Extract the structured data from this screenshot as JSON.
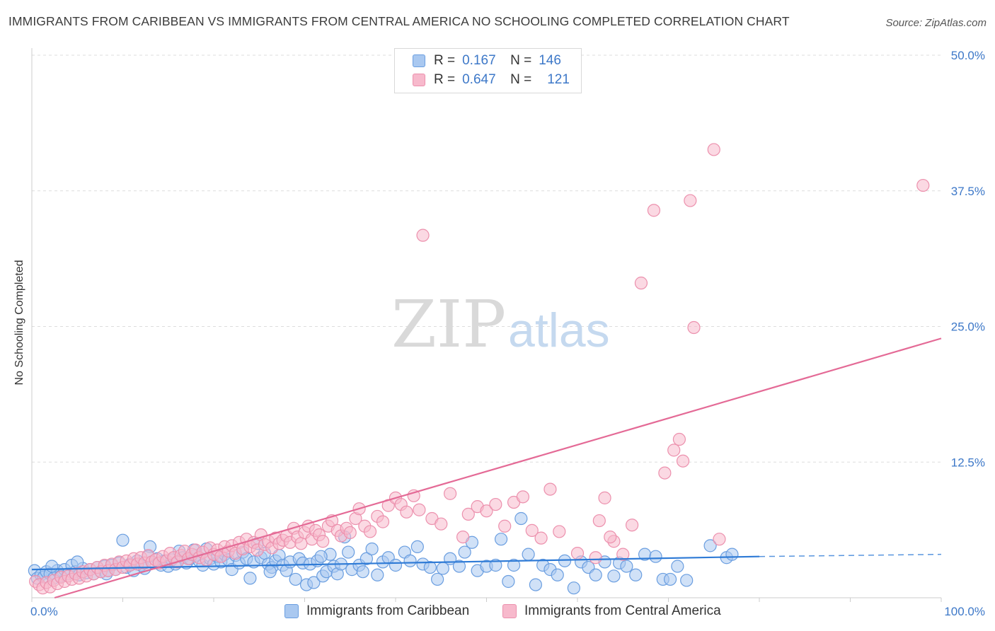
{
  "title": "IMMIGRANTS FROM CARIBBEAN VS IMMIGRANTS FROM CENTRAL AMERICA NO SCHOOLING COMPLETED CORRELATION CHART",
  "source": "Source: ZipAtlas.com",
  "watermark": {
    "zip": "ZIP",
    "atlas": "atlas"
  },
  "legend": {
    "rows": [
      {
        "r_label": "R =",
        "r_value": "0.167",
        "n_label": "N =",
        "n_value": "146"
      },
      {
        "r_label": "R =",
        "r_value": "0.647",
        "n_label": "N =",
        "n_value": "121"
      }
    ]
  },
  "colors": {
    "blue_fill": "#a9c8f0",
    "blue_stroke": "#6a9ee0",
    "blue_line": "#2f7bd6",
    "pink_fill": "#f7b9cc",
    "pink_stroke": "#ec90ad",
    "pink_line": "#e46a96",
    "tick_label": "#3d78c8",
    "grid": "#dddddd"
  },
  "chart_data": {
    "type": "scatter",
    "title": "IMMIGRANTS FROM CARIBBEAN VS IMMIGRANTS FROM CENTRAL AMERICA NO SCHOOLING COMPLETED CORRELATION CHART",
    "xlabel": "",
    "ylabel": "No Schooling Completed",
    "xlim": [
      0,
      100
    ],
    "ylim": [
      0,
      50
    ],
    "x_tick_labels": [
      "0.0%",
      "100.0%"
    ],
    "y_ticks": [
      12.5,
      25.0,
      37.5,
      50.0
    ],
    "y_tick_labels": [
      "12.5%",
      "25.0%",
      "37.5%",
      "50.0%"
    ],
    "grid": true,
    "legend_position": "top-center",
    "series": [
      {
        "name": "Immigrants from Caribbean",
        "color": "#a9c8f0",
        "R": 0.167,
        "N": 146,
        "trend": {
          "x": [
            0,
            80
          ],
          "y": [
            2.6,
            3.8
          ],
          "dashed_to": [
            100,
            4.0
          ]
        },
        "points": [
          [
            0.3,
            2.5
          ],
          [
            0.6,
            1.8
          ],
          [
            1,
            2.1
          ],
          [
            1.3,
            1.9
          ],
          [
            1.6,
            2.4
          ],
          [
            2,
            2.2
          ],
          [
            2.4,
            1.8
          ],
          [
            2.8,
            2.5
          ],
          [
            3.2,
            2
          ],
          [
            3.6,
            2.6
          ],
          [
            4,
            2.2
          ],
          [
            4.4,
            3
          ],
          [
            4.8,
            2.4
          ],
          [
            5.2,
            2.1
          ],
          [
            5.6,
            2.7
          ],
          [
            6,
            2.3
          ],
          [
            6.4,
            2.6
          ],
          [
            6.8,
            2.2
          ],
          [
            7.2,
            2.8
          ],
          [
            7.6,
            2.4
          ],
          [
            8,
            2.9
          ],
          [
            8.4,
            2.5
          ],
          [
            8.8,
            3
          ],
          [
            9.2,
            2.6
          ],
          [
            9.6,
            3.2
          ],
          [
            10,
            5.3
          ],
          [
            10.4,
            2.8
          ],
          [
            10.8,
            3.1
          ],
          [
            11.2,
            2.5
          ],
          [
            11.6,
            3.4
          ],
          [
            12,
            3
          ],
          [
            12.4,
            2.7
          ],
          [
            13,
            4.7
          ],
          [
            13.4,
            3.2
          ],
          [
            13.8,
            3.6
          ],
          [
            14.2,
            3
          ],
          [
            14.6,
            3.4
          ],
          [
            15,
            2.9
          ],
          [
            15.4,
            3.5
          ],
          [
            15.8,
            3.1
          ],
          [
            16.2,
            4.3
          ],
          [
            16.6,
            3.7
          ],
          [
            17,
            3.2
          ],
          [
            17.4,
            3.6
          ],
          [
            18,
            3.9
          ],
          [
            18.4,
            3.4
          ],
          [
            18.8,
            3
          ],
          [
            19.2,
            4.5
          ],
          [
            19.6,
            3.6
          ],
          [
            20,
            3.1
          ],
          [
            20.4,
            3.8
          ],
          [
            20.8,
            3.3
          ],
          [
            21.2,
            4
          ],
          [
            21.6,
            3.5
          ],
          [
            22,
            2.6
          ],
          [
            22.4,
            3.9
          ],
          [
            22.8,
            3.2
          ],
          [
            23.2,
            4.2
          ],
          [
            23.6,
            3.6
          ],
          [
            24,
            1.8
          ],
          [
            24.4,
            3.3
          ],
          [
            24.8,
            5
          ],
          [
            25.2,
            3.7
          ],
          [
            25.6,
            4.1
          ],
          [
            26,
            3.1
          ],
          [
            26.4,
            2.8
          ],
          [
            26.8,
            3.4
          ],
          [
            27.2,
            3.9
          ],
          [
            27.6,
            3
          ],
          [
            28,
            2.5
          ],
          [
            28.4,
            3.3
          ],
          [
            29,
            1.7
          ],
          [
            29.4,
            3.6
          ],
          [
            29.8,
            3.2
          ],
          [
            30.2,
            1.2
          ],
          [
            30.6,
            3.1
          ],
          [
            31,
            1.4
          ],
          [
            31.4,
            3.4
          ],
          [
            32,
            2
          ],
          [
            32.4,
            2.4
          ],
          [
            32.8,
            4
          ],
          [
            33.2,
            2.9
          ],
          [
            33.6,
            2.2
          ],
          [
            34,
            3.1
          ],
          [
            34.4,
            5.6
          ],
          [
            34.8,
            4.2
          ],
          [
            35.2,
            2.6
          ],
          [
            36,
            3
          ],
          [
            36.8,
            3.6
          ],
          [
            37.4,
            4.5
          ],
          [
            38,
            2.1
          ],
          [
            38.6,
            3.3
          ],
          [
            39.2,
            3.7
          ],
          [
            40,
            3
          ],
          [
            41,
            4.2
          ],
          [
            41.6,
            3.4
          ],
          [
            42.4,
            4.7
          ],
          [
            43,
            3.1
          ],
          [
            43.8,
            2.8
          ],
          [
            44.6,
            1.7
          ],
          [
            45.2,
            2.7
          ],
          [
            46,
            3.6
          ],
          [
            47,
            2.9
          ],
          [
            47.6,
            4.2
          ],
          [
            48.4,
            5.1
          ],
          [
            49,
            2.5
          ],
          [
            50,
            2.9
          ],
          [
            51,
            3
          ],
          [
            51.6,
            5.4
          ],
          [
            52.4,
            1.5
          ],
          [
            53,
            3
          ],
          [
            53.8,
            7.3
          ],
          [
            54.6,
            4
          ],
          [
            55.4,
            1.2
          ],
          [
            56.2,
            3
          ],
          [
            57,
            2.6
          ],
          [
            57.8,
            2.1
          ],
          [
            58.6,
            3.4
          ],
          [
            59.6,
            0.9
          ],
          [
            60.4,
            3.3
          ],
          [
            61.2,
            2.8
          ],
          [
            62,
            2.1
          ],
          [
            63,
            3.3
          ],
          [
            64,
            2
          ],
          [
            64.6,
            3.2
          ],
          [
            65.4,
            2.9
          ],
          [
            66.4,
            2.1
          ],
          [
            67.4,
            4
          ],
          [
            68.6,
            3.8
          ],
          [
            69.4,
            1.7
          ],
          [
            70.2,
            1.7
          ],
          [
            71,
            2.9
          ],
          [
            72,
            1.6
          ],
          [
            74.6,
            4.8
          ],
          [
            76.4,
            3.7
          ],
          [
            77,
            4
          ],
          [
            2.2,
            2.9
          ],
          [
            5,
            3.3
          ],
          [
            8.2,
            2.2
          ],
          [
            12.8,
            3.8
          ],
          [
            17.8,
            4.4
          ],
          [
            26.2,
            2.4
          ],
          [
            31.8,
            3.8
          ],
          [
            36.4,
            2.4
          ]
        ]
      },
      {
        "name": "Immigrants from Central America",
        "color": "#f7b9cc",
        "R": 0.647,
        "N": 121,
        "trend": {
          "x": [
            2.5,
            100
          ],
          "y": [
            0,
            23.9
          ]
        },
        "points": [
          [
            0.4,
            1.5
          ],
          [
            0.8,
            1.2
          ],
          [
            1.2,
            0.9
          ],
          [
            1.6,
            1.4
          ],
          [
            2,
            1
          ],
          [
            2.4,
            1.6
          ],
          [
            2.8,
            1.3
          ],
          [
            3.2,
            1.9
          ],
          [
            3.6,
            1.5
          ],
          [
            4,
            2
          ],
          [
            4.4,
            1.7
          ],
          [
            4.8,
            2.2
          ],
          [
            5.2,
            1.8
          ],
          [
            5.6,
            2.4
          ],
          [
            6,
            2
          ],
          [
            6.4,
            2.6
          ],
          [
            6.8,
            2.2
          ],
          [
            7.2,
            2.8
          ],
          [
            7.6,
            2.4
          ],
          [
            8,
            3
          ],
          [
            8.4,
            2.5
          ],
          [
            8.8,
            3.1
          ],
          [
            9.2,
            2.6
          ],
          [
            9.6,
            3.3
          ],
          [
            10,
            2.8
          ],
          [
            10.4,
            3.4
          ],
          [
            10.8,
            3
          ],
          [
            11.2,
            3.6
          ],
          [
            11.6,
            3.1
          ],
          [
            12,
            3.7
          ],
          [
            12.4,
            3.2
          ],
          [
            12.8,
            3.9
          ],
          [
            13.2,
            3.3
          ],
          [
            13.6,
            3.5
          ],
          [
            14,
            3.2
          ],
          [
            14.4,
            3.8
          ],
          [
            14.8,
            3.4
          ],
          [
            15.2,
            4.1
          ],
          [
            15.6,
            3.7
          ],
          [
            16,
            3.3
          ],
          [
            16.4,
            3.9
          ],
          [
            16.8,
            4.3
          ],
          [
            17.2,
            3.6
          ],
          [
            17.6,
            4
          ],
          [
            18,
            4.4
          ],
          [
            18.4,
            3.7
          ],
          [
            18.8,
            4.2
          ],
          [
            19.2,
            3.5
          ],
          [
            19.6,
            4.6
          ],
          [
            20,
            4
          ],
          [
            20.4,
            4.4
          ],
          [
            20.8,
            3.8
          ],
          [
            21.2,
            4.7
          ],
          [
            21.6,
            4.3
          ],
          [
            22,
            4.8
          ],
          [
            22.4,
            4.1
          ],
          [
            22.8,
            5.1
          ],
          [
            23.2,
            4.5
          ],
          [
            23.6,
            5.4
          ],
          [
            24,
            4.7
          ],
          [
            24.4,
            5.1
          ],
          [
            24.8,
            4.4
          ],
          [
            25.2,
            5.8
          ],
          [
            25.6,
            4.9
          ],
          [
            26,
            5.2
          ],
          [
            26.4,
            4.6
          ],
          [
            26.8,
            5.5
          ],
          [
            27.2,
            5
          ],
          [
            27.6,
            5.3
          ],
          [
            28,
            5.7
          ],
          [
            28.4,
            5.1
          ],
          [
            28.8,
            6.4
          ],
          [
            29.2,
            5.6
          ],
          [
            29.6,
            5
          ],
          [
            30,
            6
          ],
          [
            30.4,
            6.6
          ],
          [
            30.8,
            5.4
          ],
          [
            31.2,
            6.2
          ],
          [
            31.6,
            5.8
          ],
          [
            32,
            5.2
          ],
          [
            32.6,
            6.6
          ],
          [
            33,
            7.1
          ],
          [
            33.6,
            6.2
          ],
          [
            34,
            5.7
          ],
          [
            34.6,
            6.4
          ],
          [
            35,
            6
          ],
          [
            35.6,
            7.3
          ],
          [
            36,
            8.2
          ],
          [
            36.6,
            6.6
          ],
          [
            37.2,
            6.1
          ],
          [
            38,
            7.5
          ],
          [
            38.6,
            7
          ],
          [
            39.2,
            8.5
          ],
          [
            40,
            9.2
          ],
          [
            40.6,
            8.6
          ],
          [
            41.2,
            7.9
          ],
          [
            42,
            9.4
          ],
          [
            42.6,
            8.1
          ],
          [
            43,
            33.4
          ],
          [
            44,
            7.3
          ],
          [
            45,
            6.8
          ],
          [
            46,
            9.6
          ],
          [
            47.4,
            5.6
          ],
          [
            48,
            7.7
          ],
          [
            49,
            8.4
          ],
          [
            50,
            8
          ],
          [
            51,
            8.6
          ],
          [
            52,
            6.6
          ],
          [
            53,
            8.8
          ],
          [
            54,
            9.3
          ],
          [
            55,
            6.2
          ],
          [
            56,
            5.5
          ],
          [
            57,
            10
          ],
          [
            58,
            6.1
          ],
          [
            60,
            4.1
          ],
          [
            62,
            3.7
          ],
          [
            63,
            9.2
          ],
          [
            64,
            5.2
          ],
          [
            65,
            4
          ],
          [
            67,
            29
          ],
          [
            68.4,
            35.7
          ],
          [
            69.6,
            11.5
          ],
          [
            70.6,
            13.6
          ],
          [
            71.2,
            14.6
          ],
          [
            71.6,
            12.6
          ],
          [
            72.4,
            36.6
          ],
          [
            72.8,
            24.9
          ],
          [
            75,
            41.3
          ],
          [
            75.6,
            5.4
          ],
          [
            98,
            38
          ],
          [
            62.4,
            7.1
          ],
          [
            63.6,
            5.6
          ],
          [
            66,
            6.7
          ]
        ]
      }
    ]
  }
}
